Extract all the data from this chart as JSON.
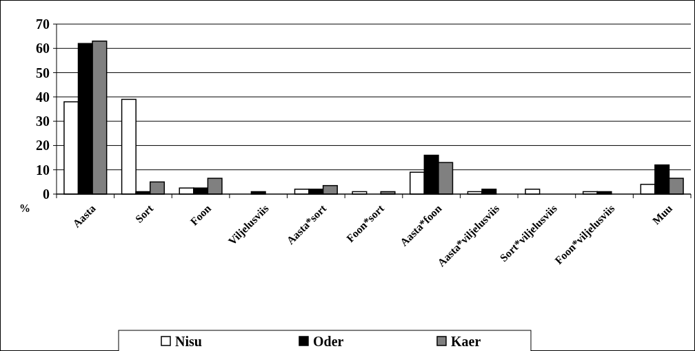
{
  "chart_data": {
    "type": "bar",
    "ylabel": "%",
    "categories": [
      "Aasta",
      "Sort",
      "Foon",
      "Viljelusviis",
      "Aasta*sort",
      "Foon*sort",
      "Aasta*foon",
      "Aasta*viljelusviis",
      "Sort*viljelusviis",
      "Foon*viljelusviis",
      "Muu"
    ],
    "series": [
      {
        "name": "Nisu",
        "color": "#ffffff",
        "values": [
          38,
          39,
          2.5,
          0,
          2,
          1,
          9,
          1,
          2,
          1,
          4
        ]
      },
      {
        "name": "Oder",
        "color": "#000000",
        "values": [
          62,
          1,
          2.5,
          1,
          2,
          0,
          16,
          2,
          0,
          1,
          12
        ]
      },
      {
        "name": "Kaer",
        "color": "#808080",
        "values": [
          63,
          5,
          6.5,
          0,
          3.5,
          1,
          13,
          0,
          0,
          0,
          6.5
        ]
      }
    ],
    "ylim": [
      0,
      70
    ],
    "yticks": [
      0,
      10,
      20,
      30,
      40,
      50,
      60,
      70
    ],
    "grid": "y",
    "legend": "bottom"
  }
}
